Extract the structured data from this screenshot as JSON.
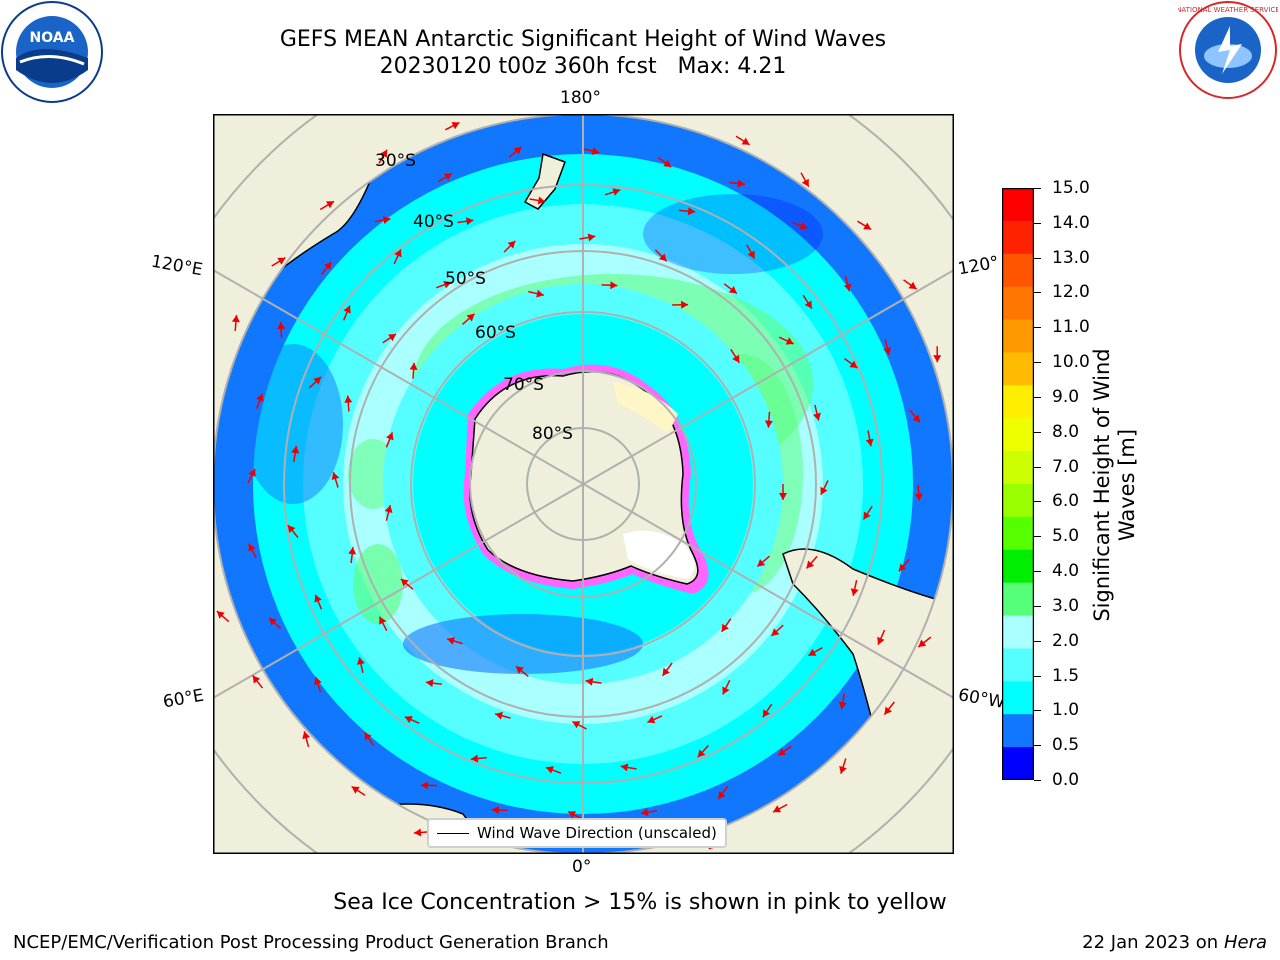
{
  "title": {
    "line1": "GEFS MEAN Antarctic Significant Height of Wind Waves",
    "line2": "20230120 t00z 360h fcst   Max: 4.21"
  },
  "logos": {
    "left": "NOAA",
    "right": "NATIONAL WEATHER SERVICE"
  },
  "map": {
    "projection": "south-polar-stereographic",
    "longitude_labels": {
      "top": "180°",
      "bottom": "0°",
      "left_upper": "120°E",
      "left_lower": "60°E",
      "right_upper": "120°",
      "right_lower": "60°W"
    },
    "latitude_labels": [
      "30°S",
      "40°S",
      "50°S",
      "60°S",
      "70°S",
      "80°S"
    ],
    "legend_label": "Wind Wave Direction (unscaled)"
  },
  "colorbar": {
    "title": "Significant Height of Wind Waves [m]",
    "ticks": [
      "15.0",
      "14.0",
      "13.0",
      "12.0",
      "11.0",
      "10.0",
      "9.0",
      "8.0",
      "7.0",
      "6.0",
      "5.0",
      "4.0",
      "3.0",
      "2.0",
      "1.5",
      "1.0",
      "0.5",
      "0.0"
    ],
    "colors": [
      "#ff0000",
      "#ff2200",
      "#ff5500",
      "#ff7700",
      "#ff9900",
      "#ffbb00",
      "#ffee00",
      "#eeff00",
      "#ccff00",
      "#99ff00",
      "#55ff00",
      "#00ee00",
      "#55ff77",
      "#aaffff",
      "#55ffff",
      "#00ffff",
      "#1177ff",
      "#0000ff"
    ]
  },
  "caption": "Sea Ice Concentration > 15% is shown in pink to yellow",
  "footer": {
    "left": "NCEP/EMC/Verification Post Processing Product Generation Branch",
    "right_date": "22 Jan 2023 on ",
    "right_host": "Hera"
  }
}
